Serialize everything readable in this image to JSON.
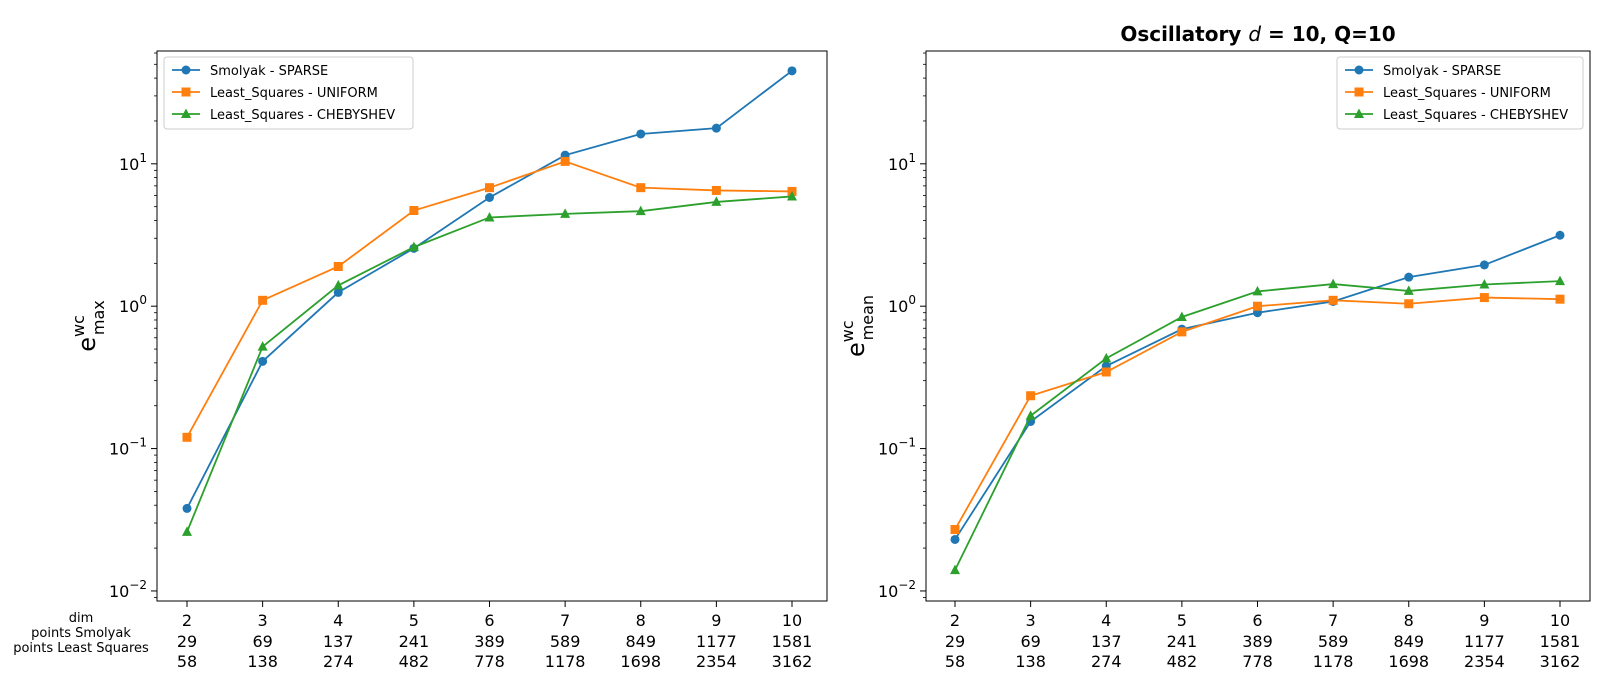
{
  "chart_data": [
    {
      "type": "line",
      "title": "",
      "xlabel": "",
      "ylabel": {
        "base": "e",
        "sup": "wc",
        "sub": "max"
      },
      "yscale": "log",
      "ylim": [
        0.0085,
        62
      ],
      "yticks": [
        {
          "value": 0.01,
          "mantissa": "10",
          "exp": "−2"
        },
        {
          "value": 0.1,
          "mantissa": "10",
          "exp": "−1"
        },
        {
          "value": 1,
          "mantissa": "10",
          "exp": "0"
        },
        {
          "value": 10,
          "mantissa": "10",
          "exp": "1"
        }
      ],
      "categories": [
        2,
        3,
        4,
        5,
        6,
        7,
        8,
        9,
        10
      ],
      "grid": false,
      "legend_position": "top-left",
      "series": [
        {
          "name": "Smolyak - SPARSE",
          "color": "#1f77b4",
          "marker": "circle",
          "values": [
            0.038,
            0.41,
            1.25,
            2.55,
            5.8,
            11.5,
            16.2,
            17.8,
            45
          ]
        },
        {
          "name": "Least_Squares - UNIFORM",
          "color": "#ff7f0e",
          "marker": "square",
          "values": [
            0.12,
            1.1,
            1.9,
            4.7,
            6.8,
            10.4,
            6.8,
            6.5,
            6.4
          ]
        },
        {
          "name": "Least_Squares - CHEBYSHEV",
          "color": "#2ca02c",
          "marker": "triangle",
          "values": [
            0.026,
            0.52,
            1.4,
            2.6,
            4.2,
            4.45,
            4.65,
            5.4,
            5.9
          ]
        }
      ]
    },
    {
      "type": "line",
      "title": {
        "prefix": "Oscillatory ",
        "var": "d",
        "suffix": " = 10, Q=10"
      },
      "xlabel": "",
      "ylabel": {
        "base": "e",
        "sup": "wc",
        "sub": "mean"
      },
      "yscale": "log",
      "ylim": [
        0.0085,
        62
      ],
      "yticks": [
        {
          "value": 0.01,
          "mantissa": "10",
          "exp": "−2"
        },
        {
          "value": 0.1,
          "mantissa": "10",
          "exp": "−1"
        },
        {
          "value": 1,
          "mantissa": "10",
          "exp": "0"
        },
        {
          "value": 10,
          "mantissa": "10",
          "exp": "1"
        }
      ],
      "categories": [
        2,
        3,
        4,
        5,
        6,
        7,
        8,
        9,
        10
      ],
      "grid": false,
      "legend_position": "top-right",
      "series": [
        {
          "name": "Smolyak - SPARSE",
          "color": "#1f77b4",
          "marker": "circle",
          "values": [
            0.023,
            0.155,
            0.38,
            0.69,
            0.9,
            1.08,
            1.6,
            1.95,
            3.15
          ]
        },
        {
          "name": "Least_Squares - UNIFORM",
          "color": "#ff7f0e",
          "marker": "square",
          "values": [
            0.027,
            0.235,
            0.345,
            0.66,
            1.0,
            1.1,
            1.04,
            1.15,
            1.12
          ]
        },
        {
          "name": "Least_Squares - CHEBYSHEV",
          "color": "#2ca02c",
          "marker": "triangle",
          "values": [
            0.014,
            0.17,
            0.43,
            0.84,
            1.27,
            1.43,
            1.28,
            1.42,
            1.5
          ]
        }
      ]
    }
  ],
  "x_table": {
    "row_labels": [
      "dim",
      "points Smolyak",
      "points Least Squares"
    ],
    "dim": [
      "2",
      "3",
      "4",
      "5",
      "6",
      "7",
      "8",
      "9",
      "10"
    ],
    "points_smolyak": [
      "29",
      "69",
      "137",
      "241",
      "389",
      "589",
      "849",
      "1177",
      "1581"
    ],
    "points_least_squares": [
      "58",
      "138",
      "274",
      "482",
      "778",
      "1178",
      "1698",
      "2354",
      "3162"
    ]
  }
}
